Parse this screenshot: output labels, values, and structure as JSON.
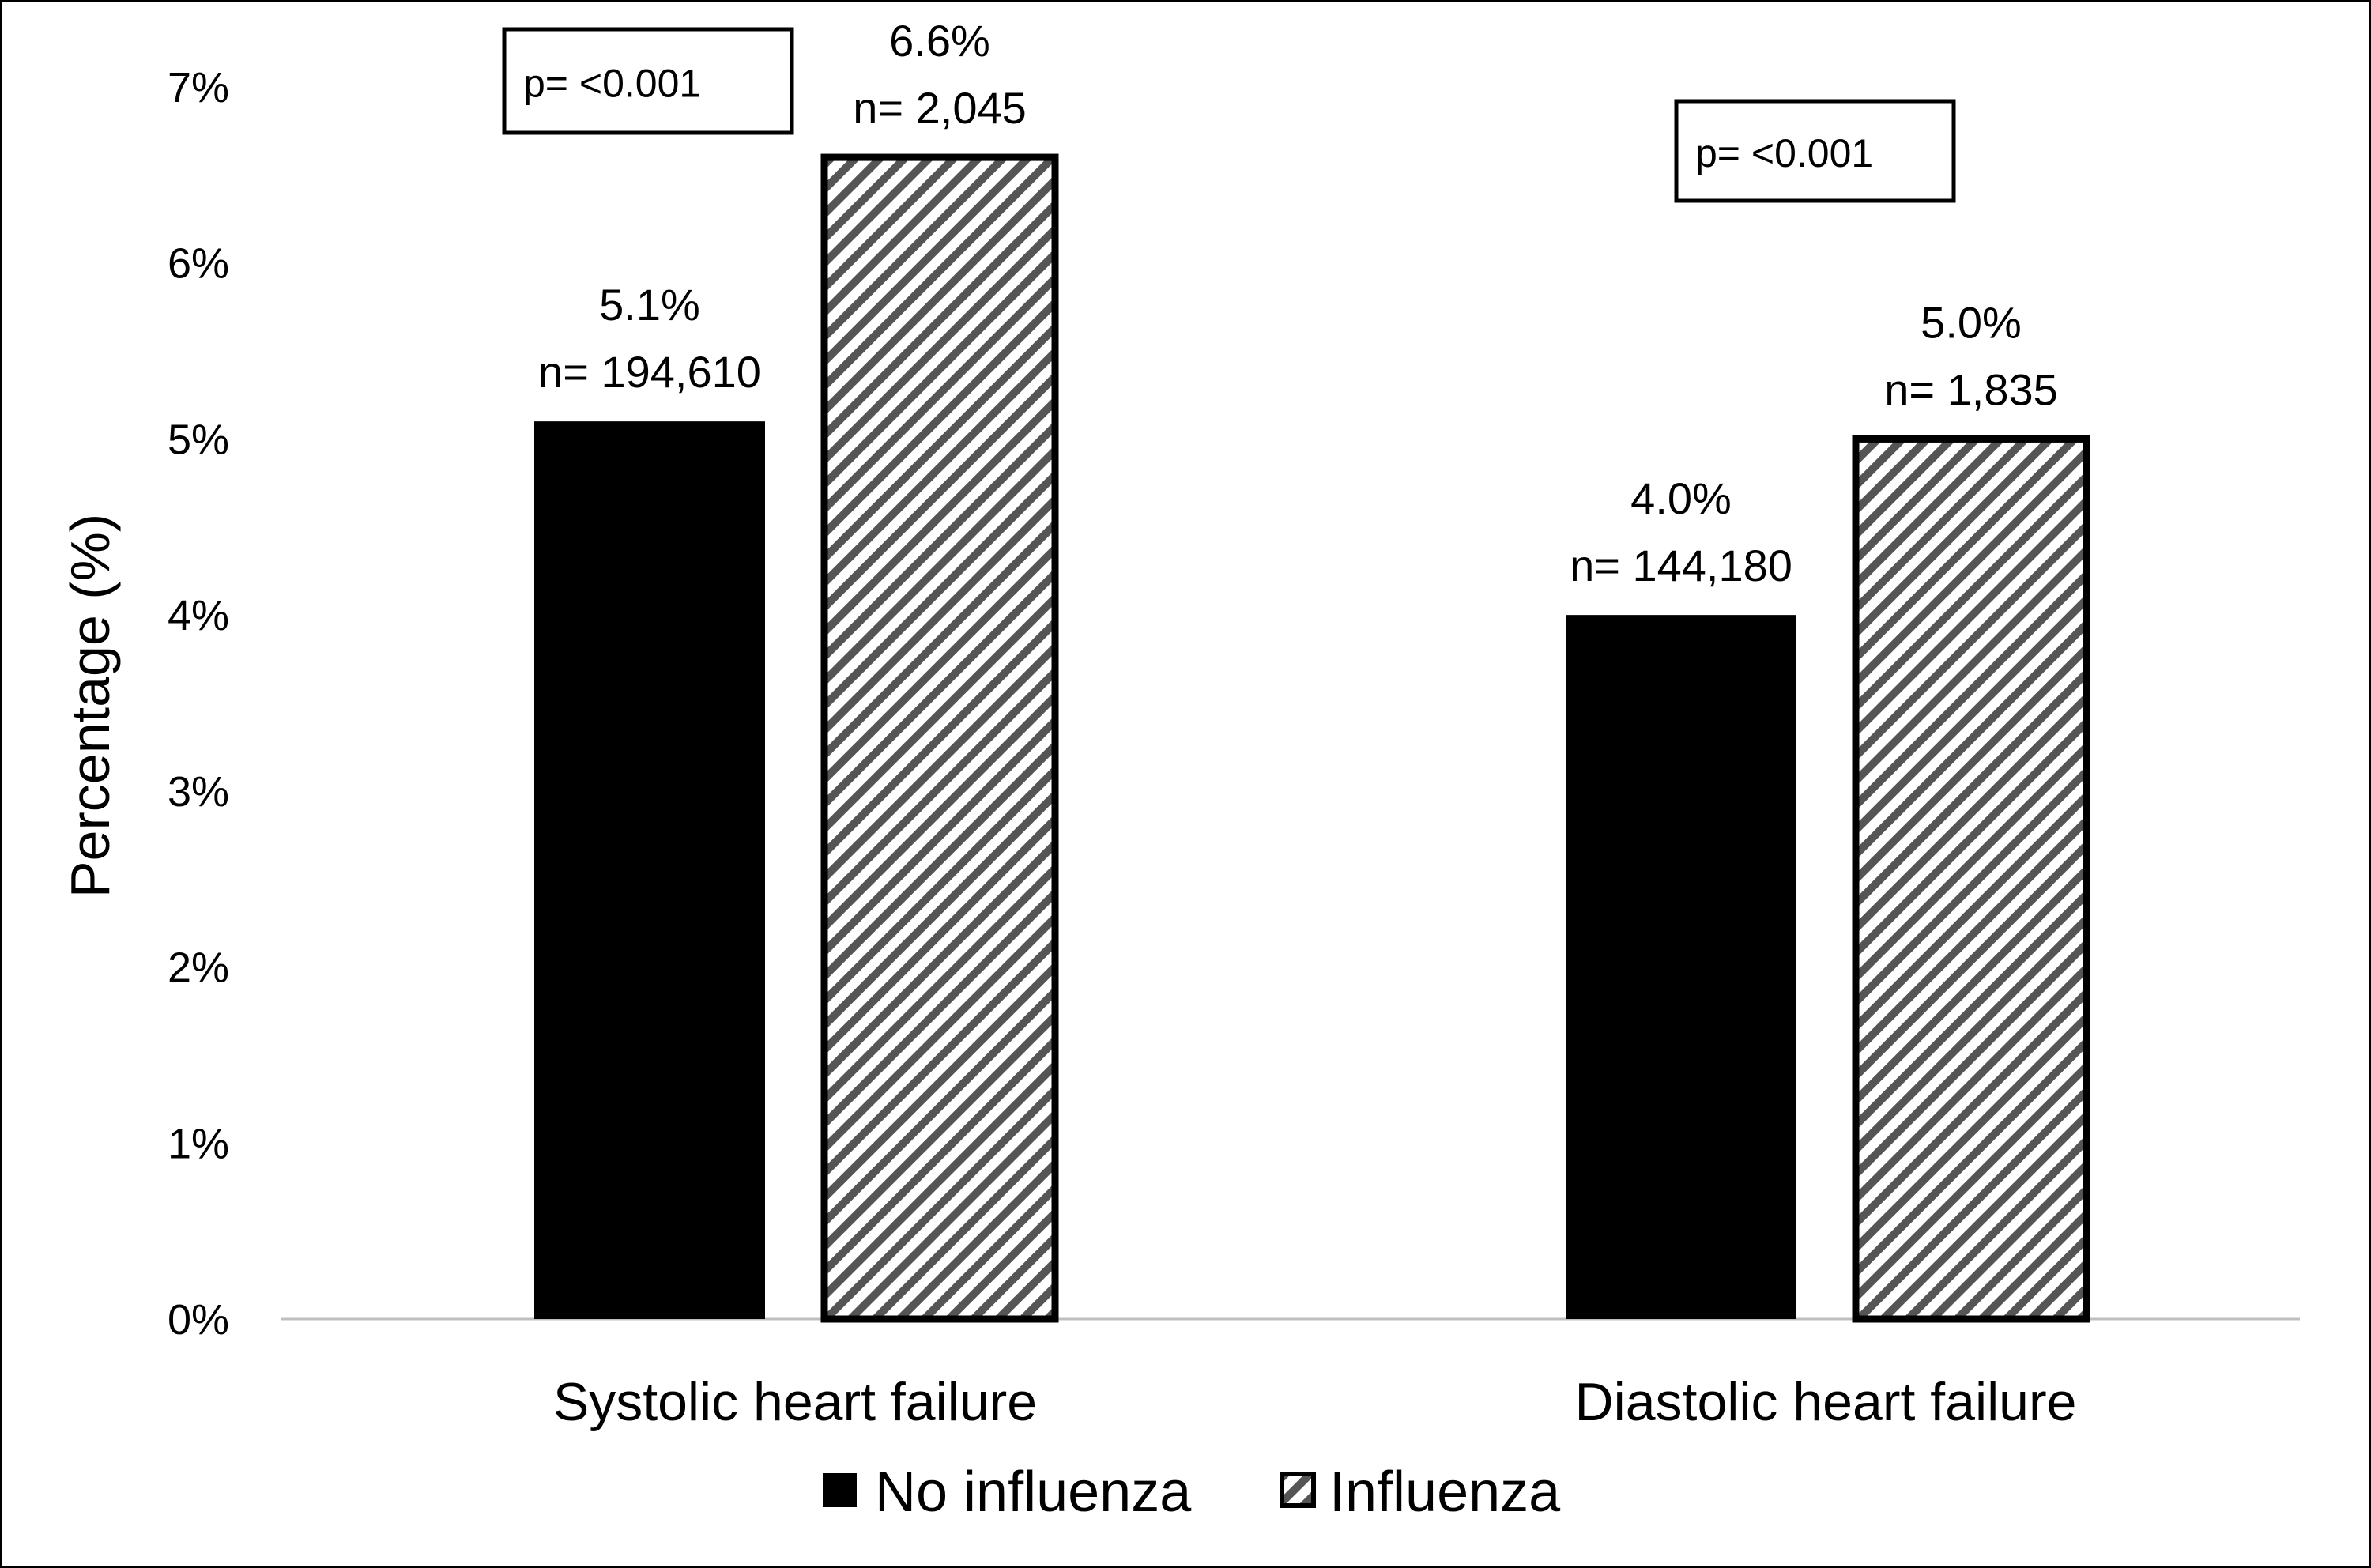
{
  "chart_data": {
    "type": "bar",
    "title": "",
    "xlabel": "",
    "ylabel": "Percentage (%)",
    "ylim": [
      0,
      7
    ],
    "yticks": [
      "0%",
      "1%",
      "2%",
      "3%",
      "4%",
      "5%",
      "6%",
      "7%"
    ],
    "categories": [
      "Systolic heart failure",
      "Diastolic heart failure"
    ],
    "series": [
      {
        "name": "No influenza",
        "fill": "solid",
        "color": "#000000",
        "values": [
          5.1,
          4.0
        ],
        "labels": [
          [
            "5.1%",
            "n= 194,610"
          ],
          [
            "4.0%",
            "n= 144,180"
          ]
        ]
      },
      {
        "name": "Influenza",
        "fill": "diagonal-hatch",
        "color": "#000000",
        "values": [
          6.6,
          5.0
        ],
        "labels": [
          [
            "6.6%",
            "n= 2,045"
          ],
          [
            "5.0%",
            "n= 1,835"
          ]
        ]
      }
    ],
    "annotations": [
      "p= <0.001",
      "p= <0.001"
    ],
    "grid": false,
    "legend_position": "bottom"
  }
}
